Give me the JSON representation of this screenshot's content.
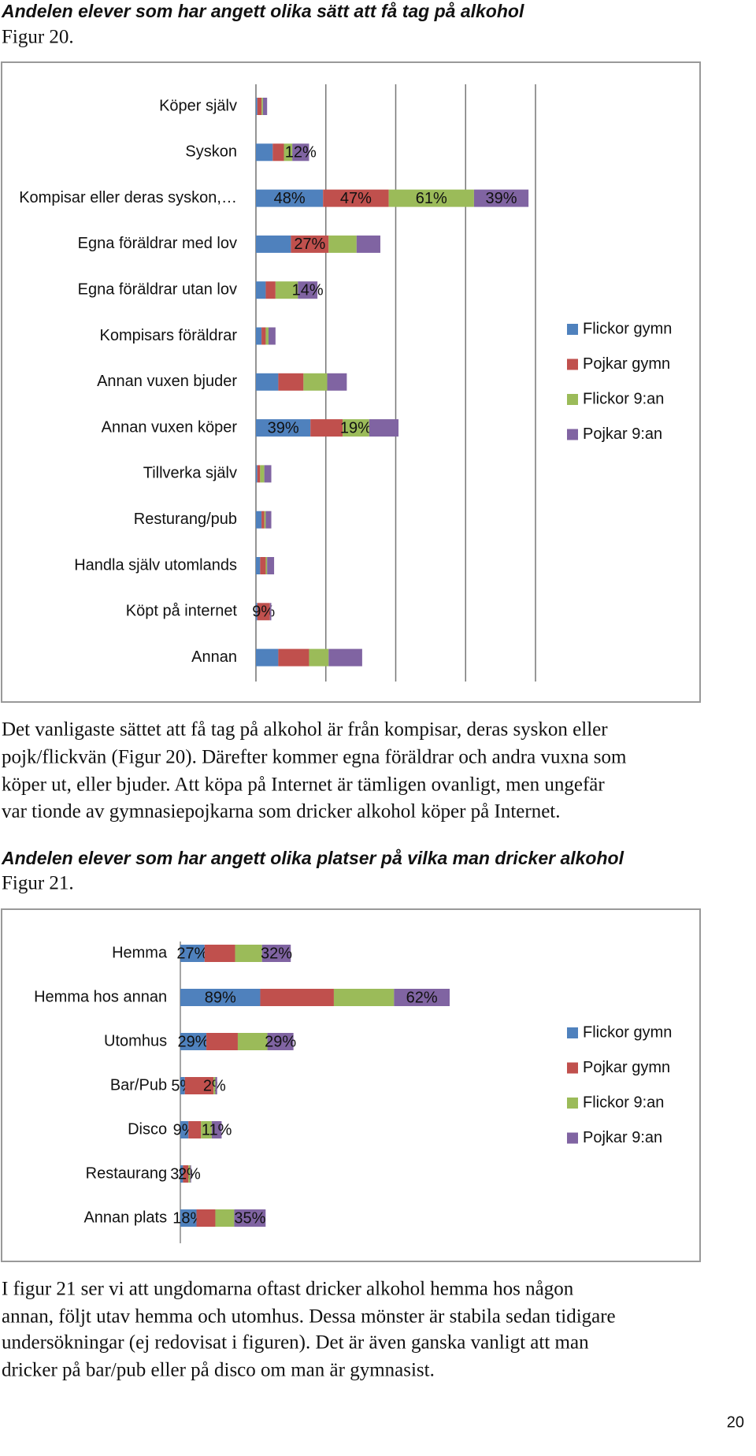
{
  "chart_data": [
    {
      "type": "bar",
      "orientation": "horizontal",
      "stacked": true,
      "title": "Andelen elever som har angett olika sätt att få tag på alkohol",
      "subtitle": "Figur 20.",
      "categories": [
        "Köper själv",
        "Syskon",
        "Kompisar eller deras syskon,…",
        "Egna föräldrar med lov",
        "Egna föräldrar utan lov",
        "Kompisars föräldrar",
        "Annan vuxen bjuder",
        "Annan vuxen köper",
        "Tillverka själv",
        "Resturang/pub",
        "Handla själv utomlands",
        "Köpt på internet",
        "Annan"
      ],
      "series": [
        {
          "name": "Flickor gymn",
          "color": "#4f81bd",
          "values": [
            1,
            12,
            48,
            25,
            7,
            4,
            16,
            39,
            1,
            4,
            3,
            1,
            16
          ],
          "value_labels": [
            null,
            null,
            "48%",
            null,
            null,
            null,
            null,
            "39%",
            null,
            null,
            null,
            null,
            null
          ]
        },
        {
          "name": "Pojkar gymn",
          "color": "#c0504d",
          "values": [
            3,
            8,
            47,
            27,
            7,
            3,
            18,
            23,
            2,
            2,
            4,
            9,
            22
          ],
          "value_labels": [
            null,
            null,
            "47%",
            "27%",
            null,
            null,
            null,
            null,
            null,
            null,
            null,
            "9%",
            null
          ]
        },
        {
          "name": "Flickor 9:an",
          "color": "#9bbb59",
          "values": [
            1,
            6,
            61,
            20,
            16,
            2,
            17,
            19,
            3,
            1,
            1,
            0,
            14
          ],
          "value_labels": [
            null,
            null,
            "61%",
            null,
            null,
            null,
            null,
            "19%",
            null,
            null,
            null,
            null,
            null
          ]
        },
        {
          "name": "Pojkar 9:an",
          "color": "#8064a2",
          "values": [
            3,
            12,
            39,
            17,
            14,
            5,
            14,
            21,
            5,
            4,
            5,
            1,
            24
          ],
          "value_labels": [
            null,
            "12%",
            "39%",
            null,
            "14%",
            null,
            null,
            null,
            null,
            null,
            null,
            null,
            null
          ]
        }
      ],
      "xlim": [
        0,
        200
      ],
      "xticks": [
        0,
        50,
        100,
        150,
        200
      ],
      "grid": true,
      "legend": "right"
    },
    {
      "type": "bar",
      "orientation": "horizontal",
      "stacked": true,
      "title": "Andelen elever som har angett olika platser på vilka man dricker alkohol",
      "subtitle": "Figur 21.",
      "categories": [
        "Hemma",
        "Hemma hos annan",
        "Utomhus",
        "Bar/Pub",
        "Disco",
        "Restaurang",
        "Annan plats"
      ],
      "series": [
        {
          "name": "Flickor gymn",
          "color": "#4f81bd",
          "values": [
            27,
            89,
            29,
            5,
            9,
            3,
            18
          ],
          "value_labels": [
            "27%",
            "89%",
            "29%",
            "5%",
            "9%",
            "3%",
            "18%"
          ]
        },
        {
          "name": "Pojkar gymn",
          "color": "#c0504d",
          "values": [
            34,
            82,
            35,
            32,
            14,
            6,
            21
          ],
          "value_labels": [
            null,
            null,
            null,
            null,
            null,
            null,
            null
          ]
        },
        {
          "name": "Flickor 9:an",
          "color": "#9bbb59",
          "values": [
            30,
            67,
            33,
            2,
            12,
            2,
            21
          ],
          "value_labels": [
            null,
            null,
            null,
            "2%",
            null,
            "2%",
            null
          ]
        },
        {
          "name": "Pojkar 9:an",
          "color": "#8064a2",
          "values": [
            32,
            62,
            29,
            2,
            11,
            1,
            35
          ],
          "value_labels": [
            "32%",
            "62%",
            "29%",
            null,
            "11%",
            null,
            "35%"
          ]
        }
      ],
      "xlim": [
        0,
        400
      ],
      "grid": false,
      "legend": "right"
    }
  ],
  "paragraphs": [
    [
      "Det vanligaste sättet att få tag på alkohol är från kompisar, deras syskon eller",
      "pojk/flickvän (Figur 20). Därefter kommer egna föräldrar och andra vuxna som",
      "köper ut, eller bjuder. Att köpa på Internet är tämligen ovanligt, men ungefär",
      "var tionde av gymnasiepojkarna som dricker alkohol köper på Internet."
    ],
    [
      "I figur 21 ser vi att ungdomarna oftast dricker alkohol hemma hos någon",
      "annan, följt utav hemma och utomhus. Dessa mönster är stabila sedan tidigare",
      "undersökningar (ej redovisat i figuren). Det är även ganska vanligt att man",
      "dricker på bar/pub eller på disco om man är gymnasist."
    ]
  ],
  "page_number": "20"
}
